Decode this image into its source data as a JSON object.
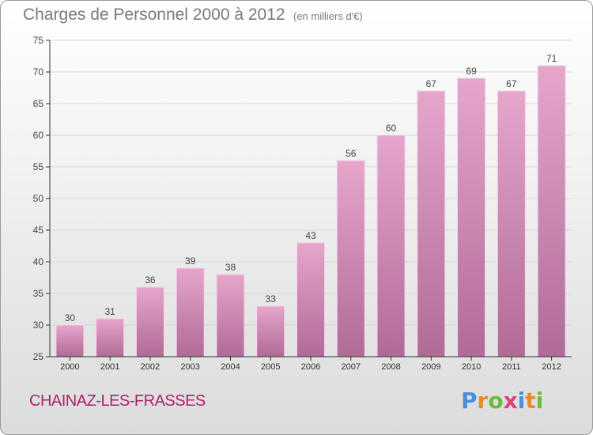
{
  "title": "Charges de Personnel 2000 à 2012",
  "subtitle": "(en milliers d'€)",
  "place_name": "CHAINAZ-LES-FRASSES",
  "logo": {
    "text": "Proxiti",
    "letters": [
      {
        "ch": "P",
        "color": "#4a90d9"
      },
      {
        "ch": "r",
        "color": "#e98b2a"
      },
      {
        "ch": "o",
        "color": "#6cbb3c"
      },
      {
        "ch": "x",
        "color": "#e0407a"
      },
      {
        "ch": "i",
        "color": "#4a90d9"
      },
      {
        "ch": "t",
        "color": "#e98b2a"
      },
      {
        "ch": "i",
        "color": "#6cbb3c"
      }
    ]
  },
  "colors": {
    "bar_top": "#e6a6cc",
    "bar_bottom": "#b06a96",
    "axis": "#333333",
    "grid": "#d8d8d8",
    "text": "#444444",
    "place": "#b0226a"
  },
  "chart_data": {
    "type": "bar",
    "categories": [
      "2000",
      "2001",
      "2002",
      "2003",
      "2004",
      "2005",
      "2006",
      "2007",
      "2008",
      "2009",
      "2010",
      "2011",
      "2012"
    ],
    "values": [
      30,
      31,
      36,
      39,
      38,
      33,
      43,
      56,
      60,
      67,
      69,
      67,
      71
    ],
    "ylim": [
      25,
      75
    ],
    "yticks": [
      25,
      30,
      35,
      40,
      45,
      50,
      55,
      60,
      65,
      70,
      75
    ],
    "grid": true,
    "data_labels": true,
    "legend": "none"
  }
}
